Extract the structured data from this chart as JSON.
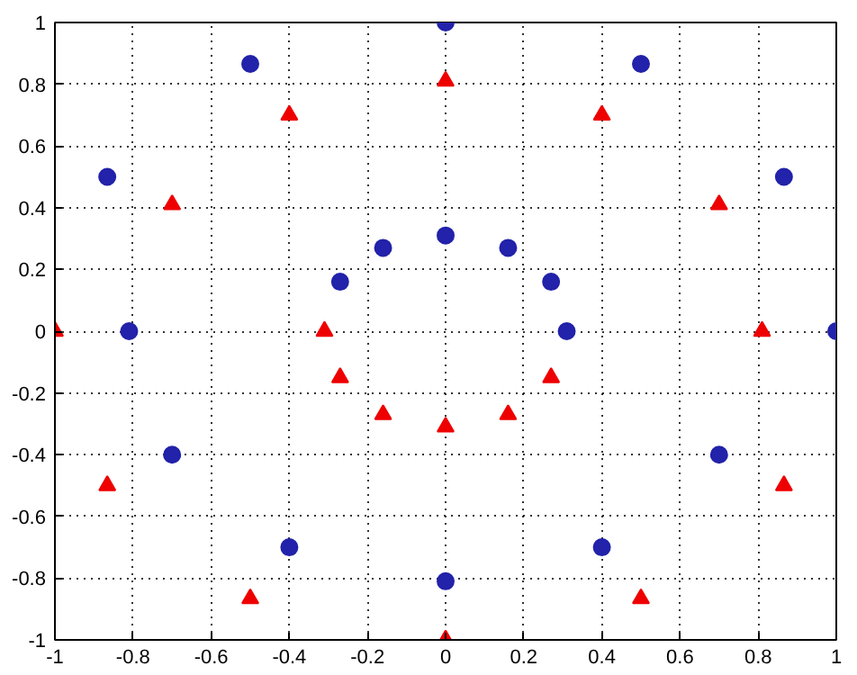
{
  "chart_data": {
    "type": "scatter",
    "xlim": [
      -1,
      1
    ],
    "ylim": [
      -1,
      1
    ],
    "xticks": [
      -1,
      -0.8,
      -0.6,
      -0.4,
      -0.2,
      0,
      0.2,
      0.4,
      0.6,
      0.8,
      1
    ],
    "yticks": [
      -1,
      -0.8,
      -0.6,
      -0.4,
      -0.2,
      0,
      0.2,
      0.4,
      0.6,
      0.8,
      1
    ],
    "grid": true,
    "line_style": "dotted",
    "series": [
      {
        "color": "#2222aa",
        "marker": "circle",
        "x": [
          0,
          -0.5,
          0.5,
          -0.866,
          0.866,
          -0.81,
          1,
          -0.7,
          0.7,
          -0.4,
          0.4,
          0,
          0,
          -0.16,
          0.16,
          -0.27,
          0.27,
          0.31
        ],
        "values": [
          1,
          0.866,
          0.866,
          0.5,
          0.5,
          0,
          0,
          -0.4,
          -0.4,
          -0.7,
          -0.7,
          -0.81,
          0.31,
          0.27,
          0.27,
          0.16,
          0.16,
          0
        ]
      },
      {
        "color": "#ee0000",
        "marker": "triangle",
        "x": [
          0,
          -0.4,
          0.4,
          -0.7,
          0.7,
          -1,
          -0.31,
          0.81,
          -0.27,
          0.27,
          -0.16,
          0.16,
          0,
          -0.866,
          0.866,
          -0.5,
          0.5,
          0
        ],
        "values": [
          0.81,
          0.7,
          0.7,
          0.41,
          0.41,
          0,
          0,
          0,
          -0.15,
          -0.15,
          -0.27,
          -0.27,
          -0.31,
          -0.5,
          -0.5,
          -0.866,
          -0.866,
          -1
        ]
      }
    ]
  }
}
